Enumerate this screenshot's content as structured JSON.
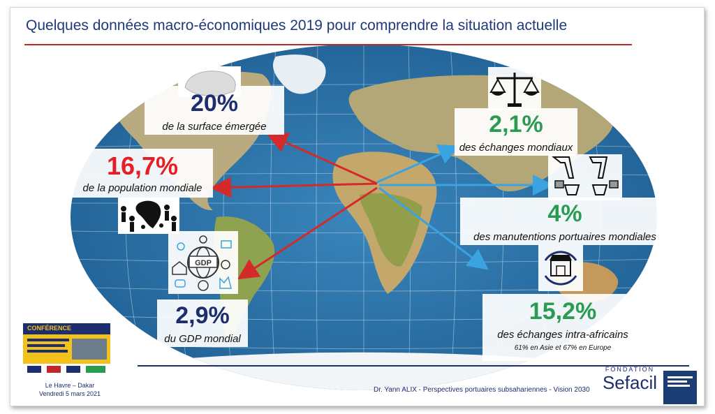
{
  "title": "Quelques données macro-économiques 2019 pour comprendre la situation actuelle",
  "stats": {
    "surface": {
      "value": "20%",
      "label": "de la surface émergée"
    },
    "population": {
      "value": "16,7%",
      "label": "de la population mondiale"
    },
    "gdp": {
      "value": "2,9%",
      "label": "du GDP mondial",
      "icon_text": "GDP"
    },
    "trade": {
      "value": "2,1%",
      "label": "des échanges mondiaux"
    },
    "ports": {
      "value": "4%",
      "label": "des manutentions portuaires mondiales"
    },
    "intra": {
      "value": "15,2%",
      "label": "des échanges intra-africains",
      "note": "61% en Asie et 67% en Europe"
    }
  },
  "footer": {
    "location": "Le Havre – Dakar",
    "date": "Vendredi 5 mars 2021",
    "author": "Dr. Yann ALIX - Perspectives portuaires subsahariennes - Vision 2030",
    "logo_top": "Fondation",
    "logo_name": "Sefacil",
    "flyer_title": "CONFÉRENCE"
  },
  "colors": {
    "navy": "#1c2e6e",
    "red": "#e41f26",
    "green": "#2a9c52",
    "ocean": "#2e7ab0",
    "land": "#b9ab7f"
  }
}
